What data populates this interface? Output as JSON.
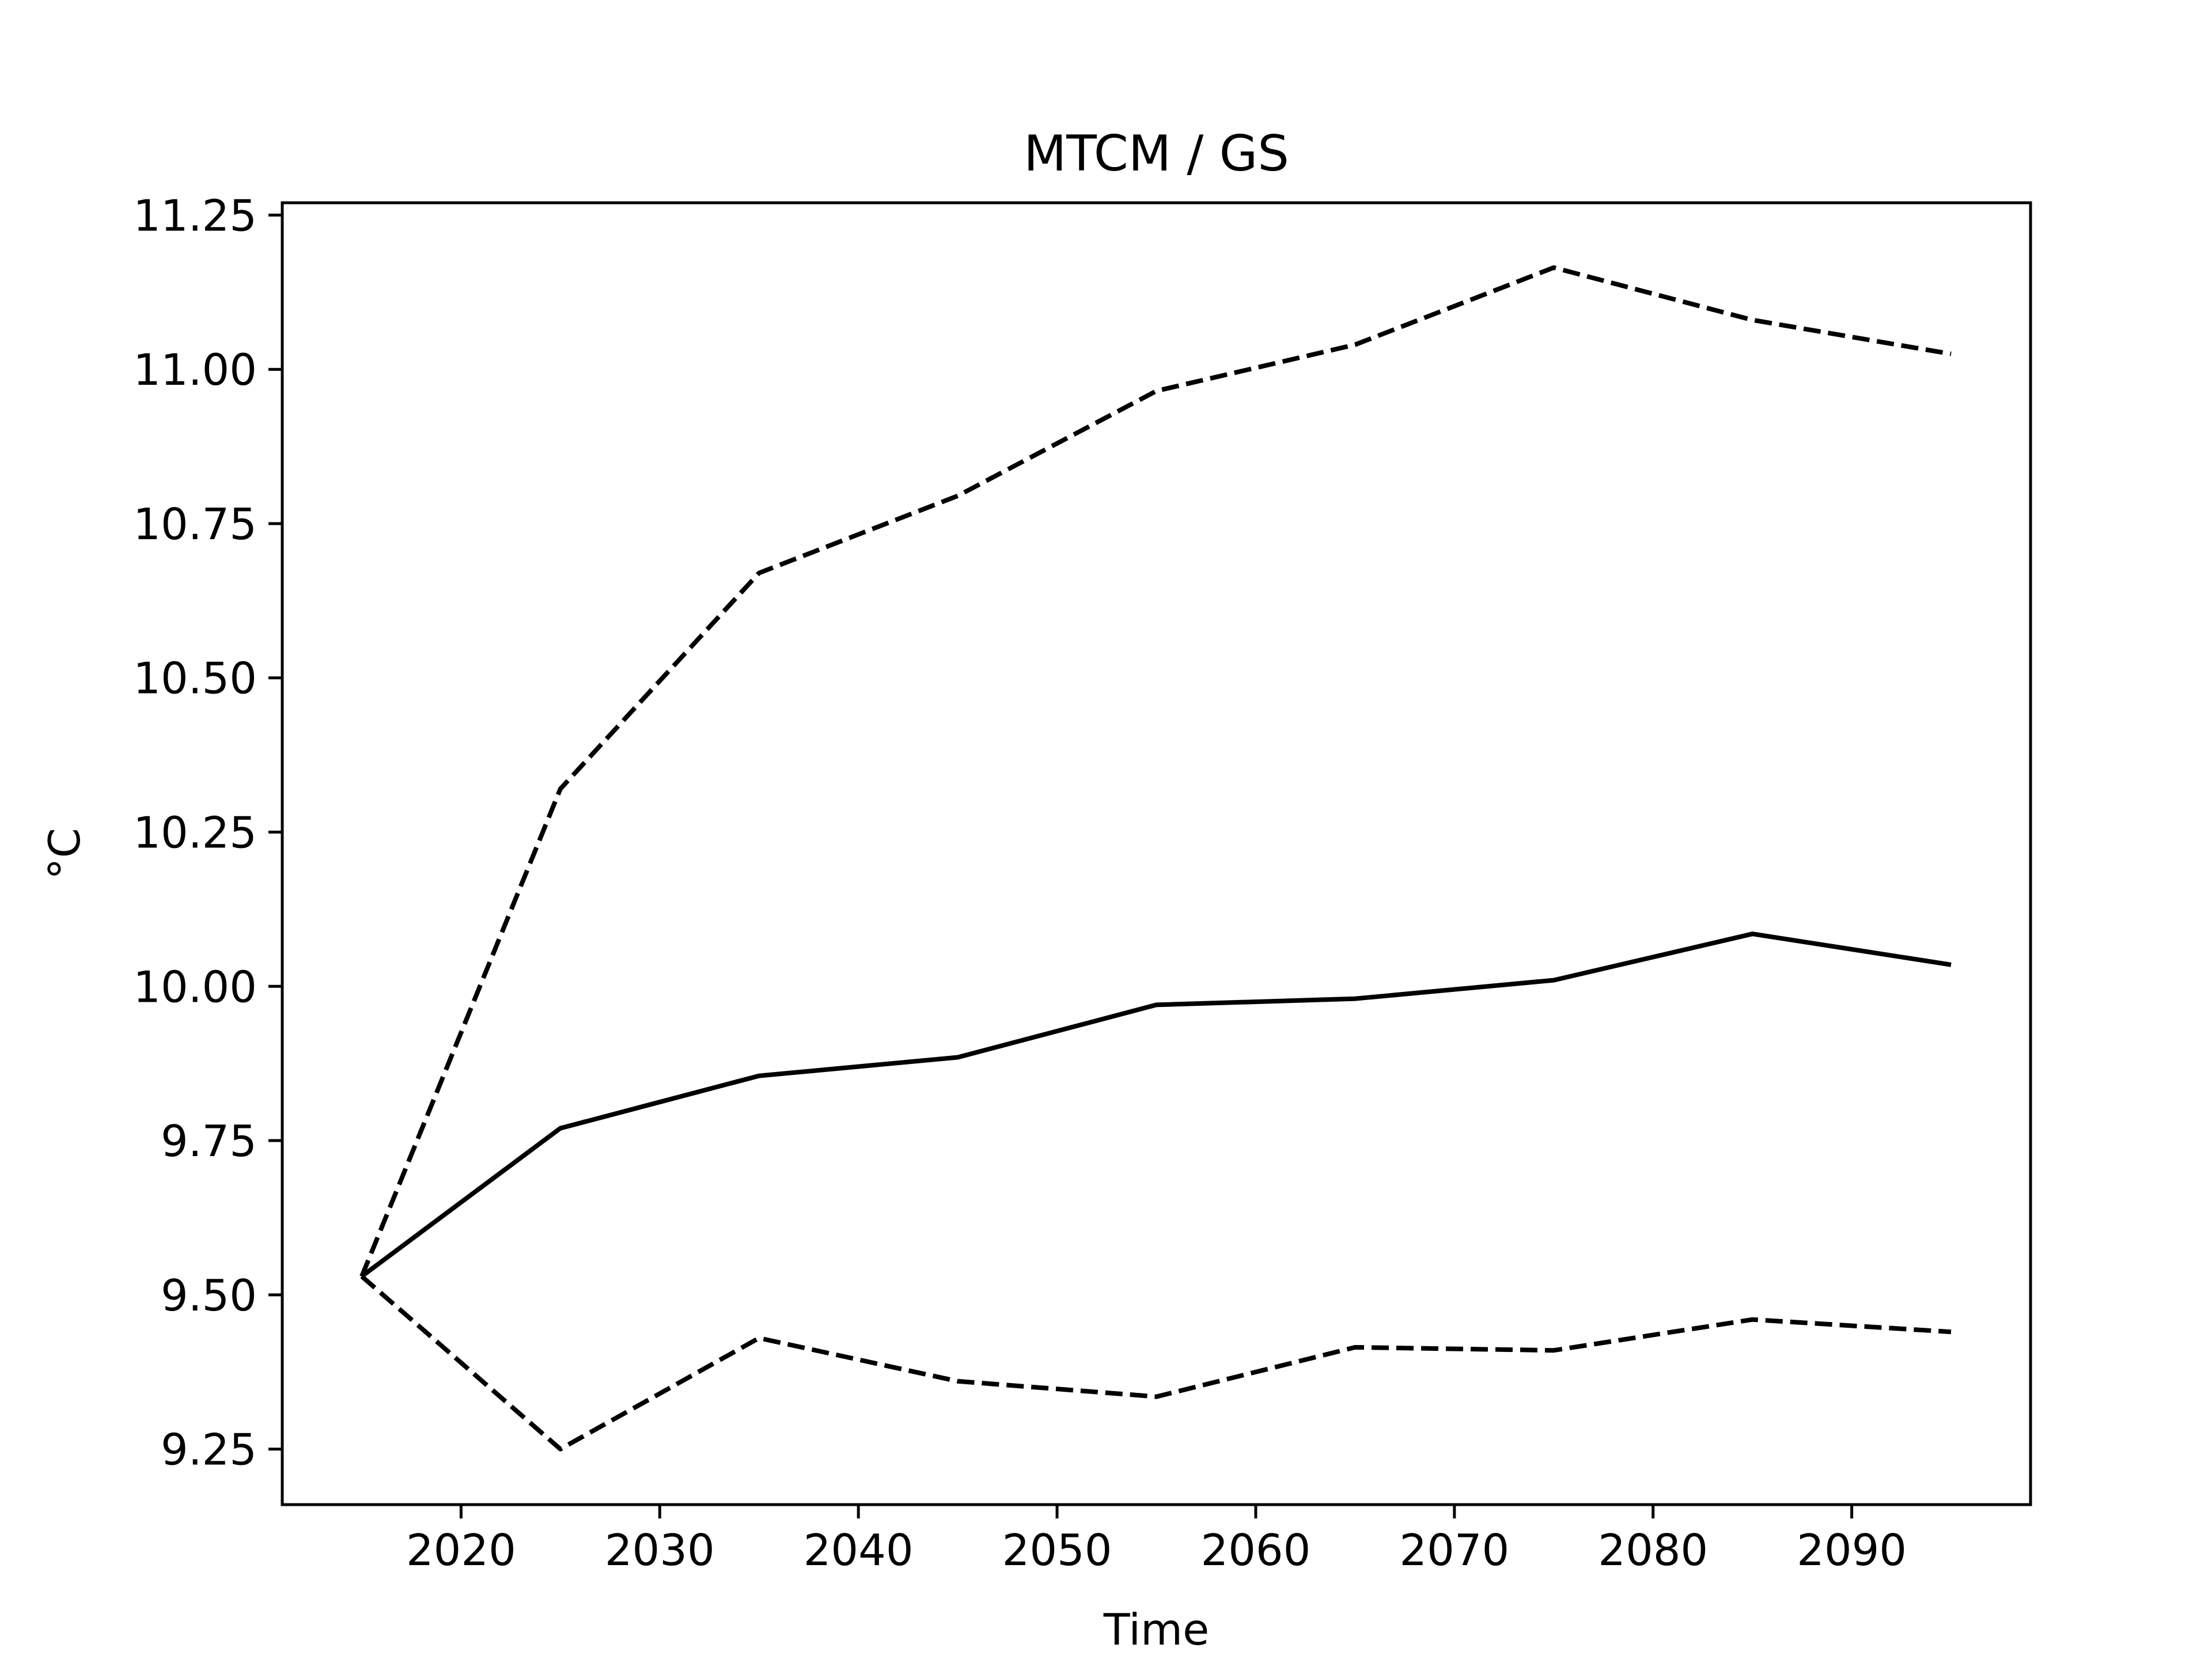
{
  "chart_data": {
    "type": "line",
    "title": "MTCM / GS",
    "xlabel": "Time",
    "ylabel": "°C",
    "x": [
      2015,
      2025,
      2035,
      2045,
      2055,
      2065,
      2075,
      2085,
      2095
    ],
    "series": [
      {
        "style": "solid",
        "values": [
          9.53,
          9.77,
          9.855,
          9.885,
          9.97,
          9.98,
          10.01,
          10.085,
          10.035
        ]
      },
      {
        "style": "dashed",
        "values": [
          9.53,
          10.32,
          10.67,
          10.795,
          10.965,
          11.04,
          11.165,
          11.08,
          11.025
        ]
      },
      {
        "style": "dashed",
        "values": [
          9.53,
          9.25,
          9.43,
          9.36,
          9.335,
          9.415,
          9.41,
          9.46,
          9.44
        ]
      }
    ],
    "xlim": [
      2011,
      2099
    ],
    "ylim": [
      9.16,
      11.27
    ],
    "xticks": [
      2020,
      2030,
      2040,
      2050,
      2060,
      2070,
      2080,
      2090
    ],
    "yticks": [
      9.25,
      9.5,
      9.75,
      10.0,
      10.25,
      10.5,
      10.75,
      11.0,
      11.25
    ],
    "ytick_labels": [
      "9.25",
      "9.50",
      "9.75",
      "10.00",
      "10.25",
      "10.50",
      "10.75",
      "11.00",
      "11.25"
    ],
    "grid": false,
    "line_color": "#000000"
  }
}
